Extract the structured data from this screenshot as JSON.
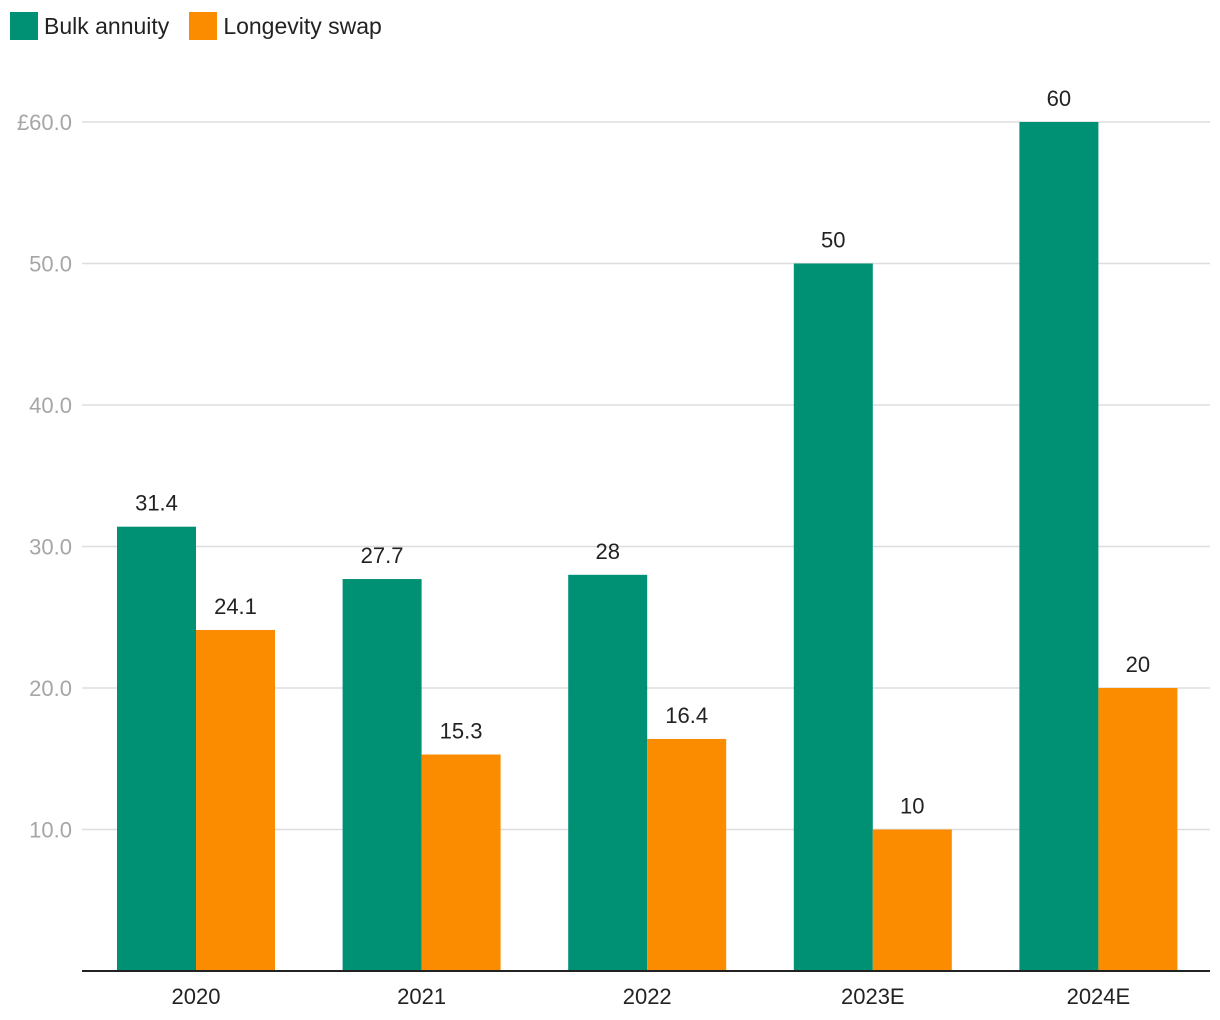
{
  "chart_data": {
    "type": "bar",
    "categories": [
      "2020",
      "2021",
      "2022",
      "2023E",
      "2024E"
    ],
    "series": [
      {
        "name": "Bulk annuity",
        "color": "#009175",
        "values": [
          31.4,
          27.7,
          28,
          50,
          60
        ],
        "labels": [
          "31.4",
          "27.7",
          "28",
          "50",
          "60"
        ]
      },
      {
        "name": "Longevity swap",
        "color": "#fb8c00",
        "values": [
          24.1,
          15.3,
          16.4,
          10,
          20
        ],
        "labels": [
          "24.1",
          "15.3",
          "16.4",
          "10",
          "20"
        ]
      }
    ],
    "yticks": [
      10,
      20,
      30,
      40,
      50,
      60
    ],
    "ytick_labels": [
      "10.0",
      "20.0",
      "30.0",
      "40.0",
      "50.0",
      "£60.0"
    ],
    "ylim": [
      0,
      60
    ],
    "grid": true,
    "legend": "top-left",
    "title": "",
    "xlabel": "",
    "ylabel": ""
  }
}
